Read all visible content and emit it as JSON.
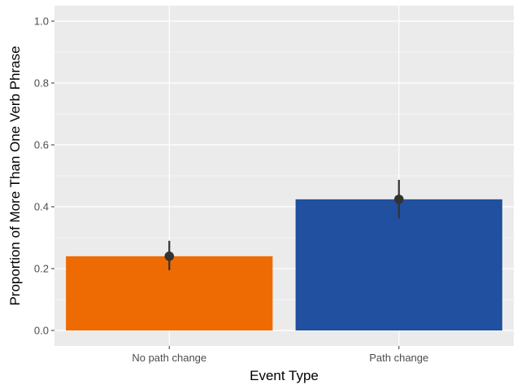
{
  "chart_data": {
    "type": "bar",
    "title": "",
    "xlabel": "Event Type",
    "ylabel": "Proportion of More Than One Verb Phrase",
    "categories": [
      "No path change",
      "Path change"
    ],
    "values": [
      0.24,
      0.424
    ],
    "error_bars": [
      {
        "mean": 0.24,
        "low": 0.195,
        "high": 0.29
      },
      {
        "mean": 0.424,
        "low": 0.362,
        "high": 0.487
      }
    ],
    "bar_colors": [
      "#EE6A02",
      "#20509F"
    ],
    "ylim": [
      -0.05,
      1.05
    ],
    "yticks": [
      0.0,
      0.2,
      0.4,
      0.6,
      0.8,
      1.0
    ],
    "ytick_labels": [
      "0.0",
      "0.2",
      "0.4",
      "0.6",
      "0.8",
      "1.0"
    ],
    "grid": true,
    "panel_background": "#EBEBEB",
    "grid_color": "#FFFFFF",
    "errorbar_color": "#333333"
  }
}
